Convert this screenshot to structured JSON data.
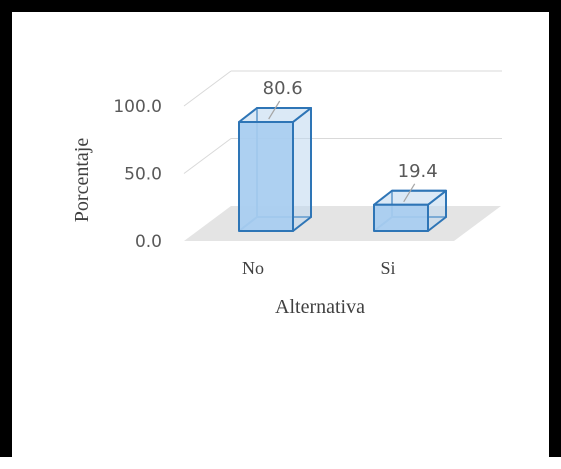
{
  "chart_data": {
    "type": "bar",
    "categories": [
      "No",
      "Si"
    ],
    "values": [
      80.6,
      19.4
    ],
    "data_labels": [
      "80.6",
      "19.4"
    ],
    "xlabel": "Alternativa",
    "ylabel": "Porcentaje",
    "ylim": [
      0,
      100
    ],
    "yticks": [
      "0.0",
      "50.0",
      "100.0"
    ],
    "grid": true,
    "legend": "none",
    "style": "3d-column",
    "colors": {
      "bar_fill": "#a9cdf0",
      "bar_edge": "#2e75b6",
      "floor": "#e4e4e4",
      "grid": "#d9d9d9"
    }
  }
}
